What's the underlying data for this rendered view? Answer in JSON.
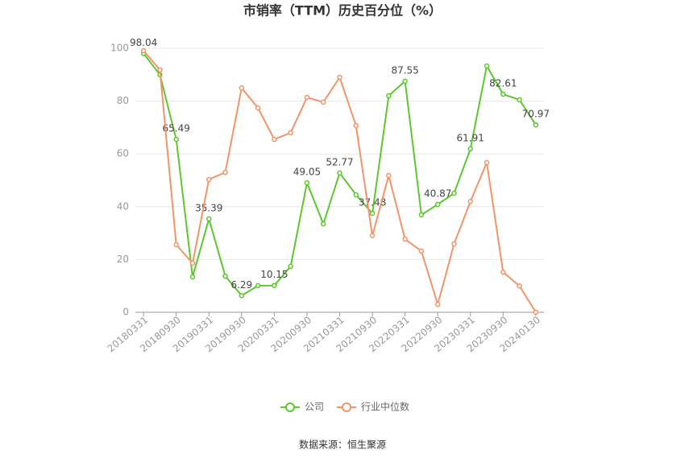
{
  "chart_data": {
    "type": "line",
    "title": "市销率（TTM）历史百分位（%）",
    "categories": [
      "20180331",
      null,
      "20180930",
      null,
      "20190331",
      null,
      "20190930",
      null,
      "20200331",
      null,
      "20200930",
      null,
      "20210331",
      null,
      "20210930",
      null,
      "20220331",
      null,
      "20220930",
      null,
      "20230331",
      null,
      "20230930",
      null,
      "20240130"
    ],
    "series": [
      {
        "name": "公司",
        "color": "#5cc72e",
        "values": [
          98.04,
          90,
          65.49,
          13.4,
          35.39,
          13.7,
          6.29,
          10.1,
          10.15,
          17.4,
          49.05,
          33.5,
          52.77,
          44.5,
          37.48,
          82,
          87.55,
          36.9,
          40.87,
          45.1,
          61.91,
          93.3,
          82.61,
          80.5,
          70.97
        ],
        "value_labels": [
          "98.04",
          null,
          "65.49",
          null,
          "35.39",
          null,
          "6.29",
          null,
          "10.15",
          null,
          "49.05",
          null,
          "52.77",
          null,
          "37.48",
          null,
          "87.55",
          null,
          "40.87",
          null,
          "61.91",
          null,
          "82.61",
          null,
          "70.97"
        ]
      },
      {
        "name": "行业中位数",
        "color": "#f39468",
        "values": [
          99.1,
          91.8,
          25.6,
          18.6,
          50.3,
          53,
          85,
          77.4,
          65.5,
          68,
          81.4,
          79.6,
          89,
          70.7,
          29,
          51.8,
          27.7,
          23.2,
          3,
          25.9,
          42,
          56.7,
          15.2,
          10,
          0
        ]
      }
    ],
    "ylim": [
      0,
      100
    ],
    "yticks": [
      0,
      20,
      40,
      60,
      80,
      100
    ],
    "grid": true,
    "legend": "bottom",
    "source": "数据来源：恒生聚源"
  }
}
